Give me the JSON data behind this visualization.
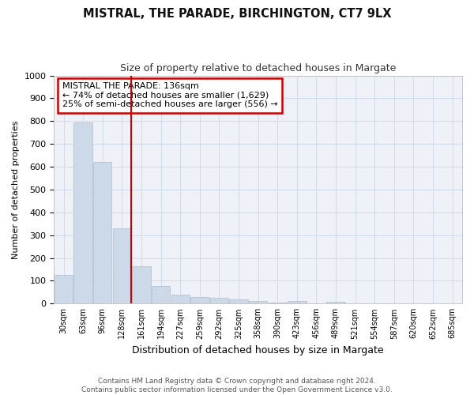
{
  "title": "MISTRAL, THE PARADE, BIRCHINGTON, CT7 9LX",
  "subtitle": "Size of property relative to detached houses in Margate",
  "xlabel": "Distribution of detached houses by size in Margate",
  "ylabel": "Number of detached properties",
  "categories": [
    "30sqm",
    "63sqm",
    "96sqm",
    "128sqm",
    "161sqm",
    "194sqm",
    "227sqm",
    "259sqm",
    "292sqm",
    "325sqm",
    "358sqm",
    "390sqm",
    "423sqm",
    "456sqm",
    "489sqm",
    "521sqm",
    "554sqm",
    "587sqm",
    "620sqm",
    "652sqm",
    "685sqm"
  ],
  "values": [
    125,
    795,
    620,
    330,
    163,
    78,
    40,
    30,
    27,
    18,
    13,
    5,
    10,
    0,
    8,
    0,
    0,
    0,
    0,
    0,
    0
  ],
  "bar_color": "#ccd9e8",
  "bar_edge_color": "#aabdd0",
  "vline_x": 3,
  "vline_color": "#cc0000",
  "annotation_text": "MISTRAL THE PARADE: 136sqm\n← 74% of detached houses are smaller (1,629)\n25% of semi-detached houses are larger (556) →",
  "annotation_box_color": "#ffffff",
  "annotation_box_edge_color": "#cc0000",
  "footer": "Contains HM Land Registry data © Crown copyright and database right 2024.\nContains public sector information licensed under the Open Government Licence v3.0.",
  "ylim": [
    0,
    1000
  ],
  "yticks": [
    0,
    100,
    200,
    300,
    400,
    500,
    600,
    700,
    800,
    900,
    1000
  ],
  "grid_color": "#d0dae8",
  "background_color": "#eef2f8"
}
